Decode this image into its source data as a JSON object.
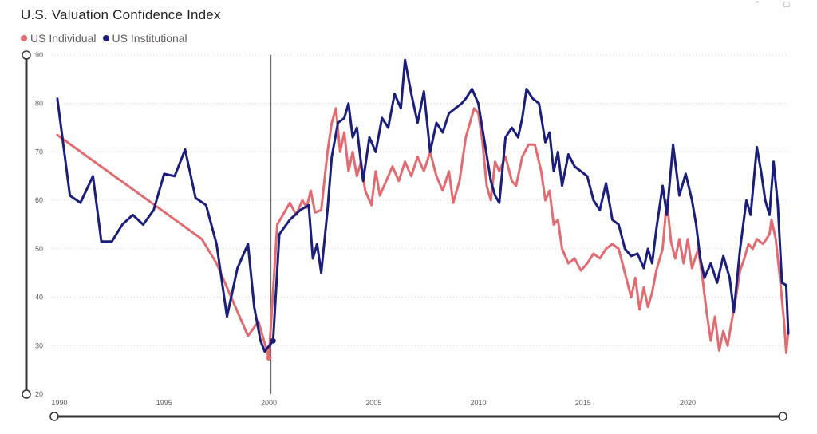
{
  "chart_data": {
    "type": "line",
    "title": "U.S. Valuation Confidence Index",
    "xlabel": "",
    "ylabel": "",
    "xlim": [
      1989.6,
      2024.8
    ],
    "ylim": [
      20,
      90
    ],
    "x_ticks": [
      1990,
      1995,
      2000,
      2005,
      2010,
      2015,
      2020
    ],
    "y_ticks": [
      20,
      30,
      40,
      50,
      60,
      70,
      80,
      90
    ],
    "grid": true,
    "legend_position": "top-left",
    "marker_line_x": 2000.1,
    "series": [
      {
        "name": "US Individual",
        "color": "#e06c72",
        "points": [
          [
            1989.9,
            73.5
          ],
          [
            1996.8,
            52
          ],
          [
            1997.5,
            47
          ],
          [
            1998.3,
            39
          ],
          [
            1999.0,
            32
          ],
          [
            1999.5,
            35
          ],
          [
            2000.0,
            27.5
          ],
          [
            2000.4,
            55
          ],
          [
            2001.0,
            59.5
          ],
          [
            2001.3,
            57
          ],
          [
            2001.6,
            60
          ],
          [
            2001.8,
            58.5
          ],
          [
            2002.0,
            62
          ],
          [
            2002.2,
            57.5
          ],
          [
            2002.5,
            58
          ],
          [
            2002.8,
            70
          ],
          [
            2003.0,
            76
          ],
          [
            2003.2,
            79
          ],
          [
            2003.4,
            70
          ],
          [
            2003.6,
            74
          ],
          [
            2003.8,
            66
          ],
          [
            2004.0,
            70
          ],
          [
            2004.2,
            65
          ],
          [
            2004.4,
            68
          ],
          [
            2004.6,
            62
          ],
          [
            2004.9,
            59
          ],
          [
            2005.1,
            66
          ],
          [
            2005.3,
            61
          ],
          [
            2005.6,
            64
          ],
          [
            2005.9,
            67
          ],
          [
            2006.2,
            64
          ],
          [
            2006.5,
            68
          ],
          [
            2006.8,
            65
          ],
          [
            2007.1,
            69
          ],
          [
            2007.4,
            66
          ],
          [
            2007.7,
            70
          ],
          [
            2008.0,
            65
          ],
          [
            2008.3,
            62
          ],
          [
            2008.6,
            66
          ],
          [
            2008.8,
            59.5
          ],
          [
            2009.1,
            64
          ],
          [
            2009.4,
            73
          ],
          [
            2009.6,
            76
          ],
          [
            2009.8,
            79
          ],
          [
            2010.0,
            78
          ],
          [
            2010.2,
            72
          ],
          [
            2010.4,
            63
          ],
          [
            2010.6,
            60
          ],
          [
            2010.8,
            68
          ],
          [
            2011.0,
            66
          ],
          [
            2011.3,
            69
          ],
          [
            2011.6,
            64
          ],
          [
            2011.8,
            63
          ],
          [
            2012.1,
            69
          ],
          [
            2012.4,
            71.5
          ],
          [
            2012.7,
            71.5
          ],
          [
            2013.0,
            66
          ],
          [
            2013.2,
            60
          ],
          [
            2013.4,
            62
          ],
          [
            2013.6,
            55
          ],
          [
            2013.8,
            56
          ],
          [
            2014.0,
            50
          ],
          [
            2014.3,
            47
          ],
          [
            2014.6,
            48
          ],
          [
            2014.9,
            45.5
          ],
          [
            2015.2,
            47
          ],
          [
            2015.5,
            49
          ],
          [
            2015.8,
            48
          ],
          [
            2016.1,
            50
          ],
          [
            2016.4,
            51
          ],
          [
            2016.7,
            50
          ],
          [
            2017.0,
            45
          ],
          [
            2017.3,
            40
          ],
          [
            2017.5,
            44
          ],
          [
            2017.7,
            37.5
          ],
          [
            2017.9,
            42
          ],
          [
            2018.1,
            38
          ],
          [
            2018.3,
            41
          ],
          [
            2018.5,
            45.5
          ],
          [
            2018.8,
            50
          ],
          [
            2019.0,
            60
          ],
          [
            2019.2,
            51.5
          ],
          [
            2019.4,
            48
          ],
          [
            2019.6,
            52
          ],
          [
            2019.8,
            47
          ],
          [
            2020.0,
            52
          ],
          [
            2020.2,
            46
          ],
          [
            2020.5,
            50
          ],
          [
            2020.7,
            44
          ],
          [
            2020.9,
            37
          ],
          [
            2021.1,
            31
          ],
          [
            2021.3,
            36
          ],
          [
            2021.5,
            29
          ],
          [
            2021.7,
            33
          ],
          [
            2021.9,
            30
          ],
          [
            2022.1,
            35
          ],
          [
            2022.3,
            40
          ],
          [
            2022.5,
            45.5
          ],
          [
            2022.7,
            48
          ],
          [
            2022.9,
            51
          ],
          [
            2023.1,
            50
          ],
          [
            2023.3,
            52
          ],
          [
            2023.6,
            51
          ],
          [
            2023.9,
            53
          ],
          [
            2024.0,
            56
          ],
          [
            2024.2,
            52
          ],
          [
            2024.4,
            44
          ],
          [
            2024.6,
            35
          ],
          [
            2024.7,
            28.5
          ],
          [
            2024.8,
            33
          ]
        ]
      },
      {
        "name": "US Institutional",
        "color": "#1b1f7a",
        "points": [
          [
            1989.9,
            81
          ],
          [
            1990.5,
            61
          ],
          [
            1991.0,
            59.5
          ],
          [
            1991.6,
            65
          ],
          [
            1992.0,
            51.5
          ],
          [
            1992.5,
            51.5
          ],
          [
            1993.0,
            55
          ],
          [
            1993.5,
            57
          ],
          [
            1994.0,
            55
          ],
          [
            1994.5,
            58
          ],
          [
            1995.0,
            65.5
          ],
          [
            1995.5,
            65
          ],
          [
            1996.0,
            70.5
          ],
          [
            1996.5,
            60.5
          ],
          [
            1997.0,
            59
          ],
          [
            1997.5,
            51
          ],
          [
            1998.0,
            36
          ],
          [
            1998.5,
            46
          ],
          [
            1999.0,
            51
          ],
          [
            1999.3,
            38
          ],
          [
            1999.6,
            31
          ],
          [
            1999.8,
            28.8
          ],
          [
            2000.2,
            31
          ],
          [
            2000.5,
            53
          ],
          [
            2001.0,
            56
          ],
          [
            2001.5,
            58
          ],
          [
            2001.9,
            59
          ],
          [
            2002.1,
            48
          ],
          [
            2002.3,
            51
          ],
          [
            2002.5,
            45
          ],
          [
            2002.8,
            58
          ],
          [
            2003.0,
            69
          ],
          [
            2003.3,
            76
          ],
          [
            2003.6,
            77
          ],
          [
            2003.8,
            80
          ],
          [
            2004.0,
            73
          ],
          [
            2004.2,
            75
          ],
          [
            2004.5,
            64
          ],
          [
            2004.8,
            73
          ],
          [
            2005.1,
            70
          ],
          [
            2005.4,
            77
          ],
          [
            2005.7,
            75
          ],
          [
            2006.0,
            82
          ],
          [
            2006.3,
            79
          ],
          [
            2006.5,
            89
          ],
          [
            2006.8,
            82
          ],
          [
            2007.1,
            76
          ],
          [
            2007.4,
            82.5
          ],
          [
            2007.7,
            70
          ],
          [
            2008.0,
            76
          ],
          [
            2008.3,
            74
          ],
          [
            2008.6,
            78
          ],
          [
            2008.9,
            79
          ],
          [
            2009.2,
            80
          ],
          [
            2009.4,
            81
          ],
          [
            2009.7,
            83
          ],
          [
            2010.0,
            80
          ],
          [
            2010.3,
            72
          ],
          [
            2010.6,
            64
          ],
          [
            2010.8,
            61
          ],
          [
            2011.0,
            59.5
          ],
          [
            2011.3,
            73
          ],
          [
            2011.6,
            75
          ],
          [
            2011.9,
            73
          ],
          [
            2012.1,
            77
          ],
          [
            2012.3,
            83
          ],
          [
            2012.6,
            81
          ],
          [
            2012.9,
            80
          ],
          [
            2013.2,
            72
          ],
          [
            2013.4,
            74
          ],
          [
            2013.6,
            66
          ],
          [
            2013.8,
            70
          ],
          [
            2014.0,
            63
          ],
          [
            2014.3,
            69.5
          ],
          [
            2014.6,
            67
          ],
          [
            2014.9,
            66
          ],
          [
            2015.2,
            65
          ],
          [
            2015.5,
            60
          ],
          [
            2015.8,
            58
          ],
          [
            2016.1,
            63.5
          ],
          [
            2016.4,
            56
          ],
          [
            2016.7,
            55
          ],
          [
            2017.0,
            50
          ],
          [
            2017.3,
            48.5
          ],
          [
            2017.6,
            49
          ],
          [
            2017.9,
            46
          ],
          [
            2018.1,
            50
          ],
          [
            2018.3,
            47
          ],
          [
            2018.5,
            54
          ],
          [
            2018.8,
            63
          ],
          [
            2019.0,
            57
          ],
          [
            2019.3,
            71.5
          ],
          [
            2019.6,
            61
          ],
          [
            2019.9,
            65.5
          ],
          [
            2020.2,
            60
          ],
          [
            2020.4,
            55
          ],
          [
            2020.6,
            48
          ],
          [
            2020.8,
            44
          ],
          [
            2021.1,
            47
          ],
          [
            2021.4,
            43
          ],
          [
            2021.7,
            48.5
          ],
          [
            2022.0,
            44
          ],
          [
            2022.2,
            37
          ],
          [
            2022.5,
            50
          ],
          [
            2022.8,
            60
          ],
          [
            2023.0,
            57
          ],
          [
            2023.3,
            71
          ],
          [
            2023.5,
            66
          ],
          [
            2023.7,
            60
          ],
          [
            2023.9,
            57
          ],
          [
            2024.1,
            68
          ],
          [
            2024.3,
            59
          ],
          [
            2024.5,
            43
          ],
          [
            2024.7,
            42.5
          ],
          [
            2024.8,
            32.5
          ]
        ]
      }
    ]
  }
}
